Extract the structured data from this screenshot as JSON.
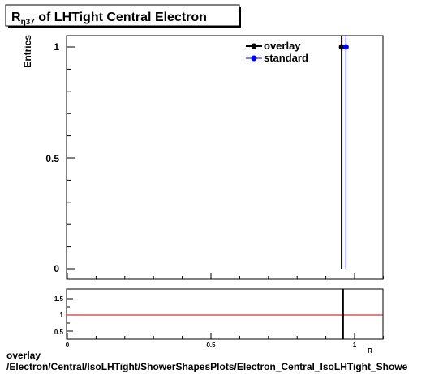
{
  "title": {
    "main": "R",
    "sub": "η37",
    "rest": " of LHTight Central  Electron"
  },
  "ylabel": "Entries",
  "legend": [
    {
      "label": "overlay",
      "color": "#000000"
    },
    {
      "label": "standard",
      "color": "#0000ff"
    }
  ],
  "main_ticks": [
    "0",
    "0.5",
    "1"
  ],
  "ratio_ticks": [
    "0.5",
    "1",
    "1.5"
  ],
  "x_ticks": [
    "0",
    "0.5",
    "1"
  ],
  "x_axis_label": "R",
  "footer": {
    "line1": "overlay",
    "line2": "/Electron/Central/IsoLHTight/ShowerShapesPlots/Electron_Central_IsoLHTight_Showe"
  },
  "chart_data": [
    {
      "type": "line",
      "title": "R_η37 of LHTight Central  Electron",
      "ylabel": "Entries",
      "xlabel": "R",
      "xlim": [
        0,
        1.1
      ],
      "ylim": [
        0,
        1.05
      ],
      "series": [
        {
          "name": "overlay",
          "color": "#000000",
          "x": [
            0.955
          ],
          "y": [
            1
          ]
        },
        {
          "name": "standard",
          "color": "#0000ff",
          "x": [
            0.97
          ],
          "y": [
            1
          ]
        }
      ]
    },
    {
      "type": "line",
      "xlim": [
        0,
        1.1
      ],
      "ylim": [
        0.35,
        1.7
      ],
      "reference_line": {
        "y": 1,
        "color": "#c00000"
      },
      "series": [
        {
          "name": "ratio",
          "color": "#000000",
          "x": [
            0.96
          ],
          "y": [
            1
          ]
        }
      ]
    }
  ]
}
